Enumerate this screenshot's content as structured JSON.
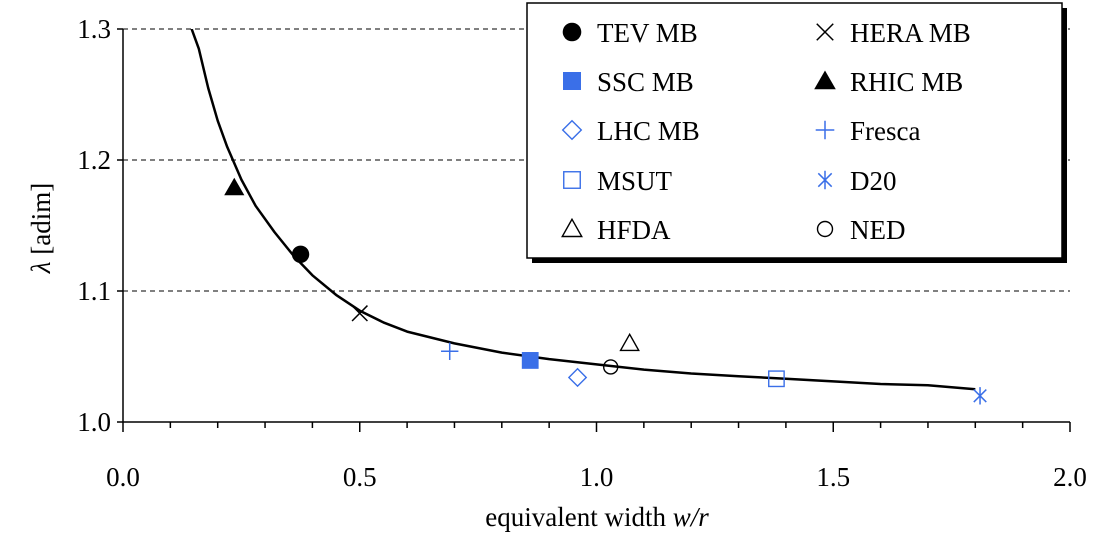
{
  "chart_data": {
    "type": "scatter",
    "xlabel_prefix": "equivalent width ",
    "xlabel_italic": "w/r",
    "ylabel_symbol": "λ",
    "ylabel_unit": " [adim]",
    "xlim": [
      0.0,
      2.0
    ],
    "ylim": [
      1.0,
      1.3
    ],
    "x_ticks": [
      0.0,
      0.5,
      1.0,
      1.5,
      2.0
    ],
    "x_tick_labels": [
      "0.0",
      "0.5",
      "1.0",
      "1.5",
      "2.0"
    ],
    "y_ticks": [
      1.0,
      1.1,
      1.2,
      1.3
    ],
    "y_tick_labels": [
      "1.0",
      "1.1",
      "1.2",
      "1.3"
    ],
    "grid": "horizontal-dashed",
    "legend_position": "top-right",
    "series": [
      {
        "name": "TEV MB",
        "marker": "filled-circle",
        "color": "#000000",
        "points": [
          [
            0.375,
            1.128
          ]
        ]
      },
      {
        "name": "HERA MB",
        "marker": "x-cross",
        "color": "#000000",
        "points": [
          [
            0.5,
            1.083
          ]
        ]
      },
      {
        "name": "SSC MB",
        "marker": "filled-square",
        "color": "#3a6fe8",
        "points": [
          [
            0.86,
            1.047
          ]
        ]
      },
      {
        "name": "RHIC MB",
        "marker": "filled-triangle",
        "color": "#000000",
        "points": [
          [
            0.235,
            1.179
          ]
        ]
      },
      {
        "name": "LHC MB",
        "marker": "open-diamond",
        "color": "#3a6fe8",
        "points": [
          [
            0.96,
            1.034
          ]
        ]
      },
      {
        "name": "Fresca",
        "marker": "plus",
        "color": "#3a6fe8",
        "points": [
          [
            0.69,
            1.054
          ]
        ]
      },
      {
        "name": "MSUT",
        "marker": "open-square",
        "color": "#3a6fe8",
        "points": [
          [
            1.38,
            1.033
          ]
        ]
      },
      {
        "name": "D20",
        "marker": "asterisk",
        "color": "#3a6fe8",
        "points": [
          [
            1.81,
            1.02
          ]
        ]
      },
      {
        "name": "HFDA",
        "marker": "open-triangle",
        "color": "#000000",
        "points": [
          [
            1.07,
            1.06
          ]
        ]
      },
      {
        "name": "NED",
        "marker": "open-circle",
        "color": "#000000",
        "points": [
          [
            1.03,
            1.042
          ]
        ]
      }
    ],
    "fit_curve": {
      "color": "#000000",
      "points": [
        [
          0.14,
          1.305
        ],
        [
          0.16,
          1.285
        ],
        [
          0.18,
          1.255
        ],
        [
          0.2,
          1.23
        ],
        [
          0.22,
          1.21
        ],
        [
          0.25,
          1.185
        ],
        [
          0.28,
          1.165
        ],
        [
          0.32,
          1.145
        ],
        [
          0.36,
          1.127
        ],
        [
          0.4,
          1.112
        ],
        [
          0.45,
          1.097
        ],
        [
          0.5,
          1.085
        ],
        [
          0.55,
          1.076
        ],
        [
          0.6,
          1.069
        ],
        [
          0.7,
          1.06
        ],
        [
          0.8,
          1.053
        ],
        [
          0.9,
          1.048
        ],
        [
          1.0,
          1.044
        ],
        [
          1.1,
          1.04
        ],
        [
          1.2,
          1.037
        ],
        [
          1.3,
          1.035
        ],
        [
          1.4,
          1.033
        ],
        [
          1.5,
          1.031
        ],
        [
          1.6,
          1.029
        ],
        [
          1.7,
          1.028
        ],
        [
          1.8,
          1.025
        ]
      ]
    }
  }
}
